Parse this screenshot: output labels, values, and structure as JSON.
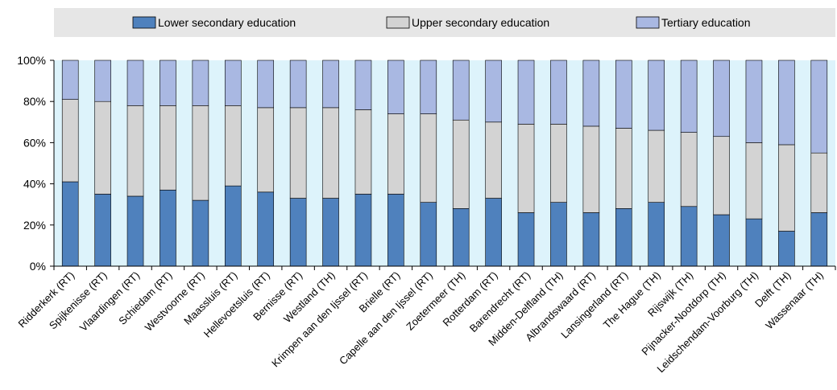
{
  "chart_data": {
    "type": "bar",
    "stacked": true,
    "categories": [
      "Ridderkerk (RT)",
      "Spijkenisse (RT)",
      "Vlaardingen (RT)",
      "Schiedam (RT)",
      "Westvoorne (RT)",
      "Maassluis (RT)",
      "Hellevoetsluis (RT)",
      "Bernisse (RT)",
      "Westland (TH)",
      "Krimpen aan den Ijssel (RT)",
      "Brielle (RT)",
      "Capelle aan den Ijssel (RT)",
      "Zoetermeer (TH)",
      "Rotterdam (RT)",
      "Barendrecht (RT)",
      "Midden-Delfland (TH)",
      "Albrandswaard (RT)",
      "Lansingerland (RT)",
      "The Hague (TH)",
      "Rijswijk (TH)",
      "Pijnacker-Nootdorp (TH)",
      "Leidschendam-Voorburg (TH)",
      "Delft (TH)",
      "Wassenaar (TH)"
    ],
    "series": [
      {
        "name": "Lower secondary education",
        "color": "#4f81bd",
        "values": [
          41,
          35,
          34,
          37,
          32,
          39,
          36,
          33,
          33,
          35,
          35,
          31,
          28,
          33,
          26,
          31,
          26,
          28,
          31,
          29,
          25,
          23,
          17,
          26
        ]
      },
      {
        "name": "Upper secondary education",
        "color": "#d3d3d3",
        "values": [
          40,
          45,
          44,
          41,
          46,
          39,
          41,
          44,
          44,
          41,
          39,
          43,
          43,
          37,
          43,
          38,
          42,
          39,
          35,
          36,
          38,
          37,
          42,
          29
        ]
      },
      {
        "name": "Tertiary education",
        "color": "#a9b8e2",
        "values": [
          19,
          20,
          22,
          22,
          22,
          22,
          23,
          23,
          23,
          24,
          26,
          26,
          29,
          30,
          31,
          31,
          32,
          33,
          34,
          35,
          37,
          40,
          41,
          45
        ]
      }
    ],
    "yticks": [
      "0%",
      "20%",
      "40%",
      "60%",
      "80%",
      "100%"
    ],
    "ylim": [
      0,
      100
    ],
    "grid": false,
    "legend_position": "top",
    "background_color": "#ddf3fb",
    "legend_background": "#e6e6e6"
  }
}
